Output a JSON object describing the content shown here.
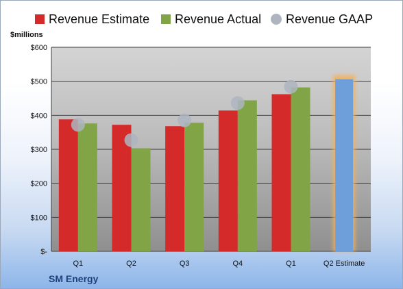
{
  "chart_data": {
    "type": "bar",
    "title": "",
    "ylabel": "$millions",
    "xlabel": "",
    "categories": [
      "Q1",
      "Q2",
      "Q3",
      "Q4",
      "Q1",
      "Q2 Estimate"
    ],
    "series": [
      {
        "name": "Revenue Estimate",
        "values": [
          388,
          372,
          368,
          414,
          462,
          null
        ],
        "color": "#d42a2a"
      },
      {
        "name": "Revenue Actual",
        "values": [
          376,
          303,
          378,
          444,
          482,
          null
        ],
        "color": "#80a446"
      },
      {
        "name": "Revenue GAAP",
        "values": [
          372,
          327,
          385,
          436,
          484,
          null
        ],
        "color": "#aeb5bf",
        "marker": "circle"
      },
      {
        "name": "Q2 Estimate",
        "values": [
          null,
          null,
          null,
          null,
          null,
          506
        ],
        "color": "#6f9fdb",
        "highlight": "#f3b15a"
      }
    ],
    "ylim": [
      0,
      600
    ],
    "yticks": [
      0,
      100,
      200,
      300,
      400,
      500,
      600
    ],
    "ytick_labels": [
      "$-",
      "$100",
      "$200",
      "$300",
      "$400",
      "$500",
      "$600"
    ],
    "grid": true,
    "legend_position": "top"
  },
  "footer": {
    "company": "SM Energy"
  }
}
